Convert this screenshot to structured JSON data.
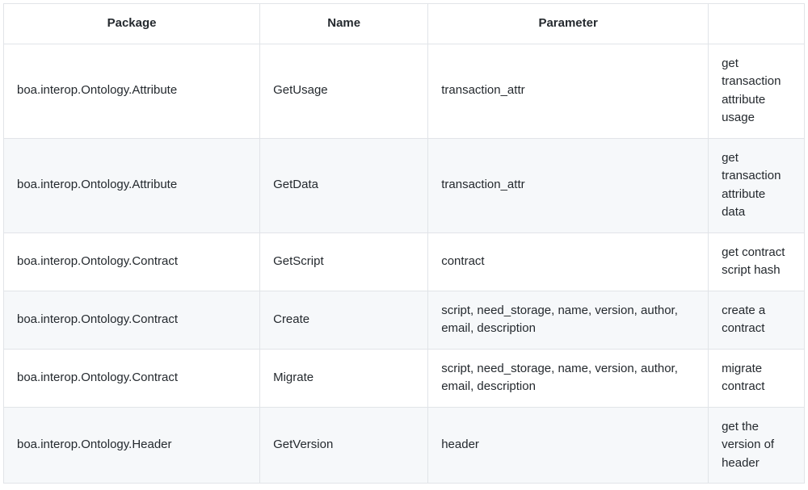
{
  "table": {
    "columns": [
      "Package",
      "Name",
      "Parameter",
      ""
    ],
    "column_widths": [
      "32%",
      "21%",
      "35%",
      "12%"
    ],
    "header_bg": "#ffffff",
    "row_bg": "#ffffff",
    "row_alt_bg": "#f6f8fa",
    "border_color": "#e1e4e8",
    "text_color": "#24292e",
    "font_size": 15,
    "rows": [
      {
        "package": "boa.interop.Ontology.Attribute",
        "name": "GetUsage",
        "parameter": "transaction_attr",
        "desc": "get transaction attribute usage"
      },
      {
        "package": "boa.interop.Ontology.Attribute",
        "name": "GetData",
        "parameter": "transaction_attr",
        "desc": "get transaction attribute data"
      },
      {
        "package": "boa.interop.Ontology.Contract",
        "name": "GetScript",
        "parameter": "contract",
        "desc": "get contract script hash"
      },
      {
        "package": "boa.interop.Ontology.Contract",
        "name": "Create",
        "parameter": "script, need_storage, name, version, author, email, description",
        "desc": "create a contract"
      },
      {
        "package": "boa.interop.Ontology.Contract",
        "name": "Migrate",
        "parameter": "script, need_storage, name, version, author, email, description",
        "desc": "migrate contract"
      },
      {
        "package": "boa.interop.Ontology.Header",
        "name": "GetVersion",
        "parameter": "header",
        "desc": "get the version of header"
      }
    ]
  }
}
